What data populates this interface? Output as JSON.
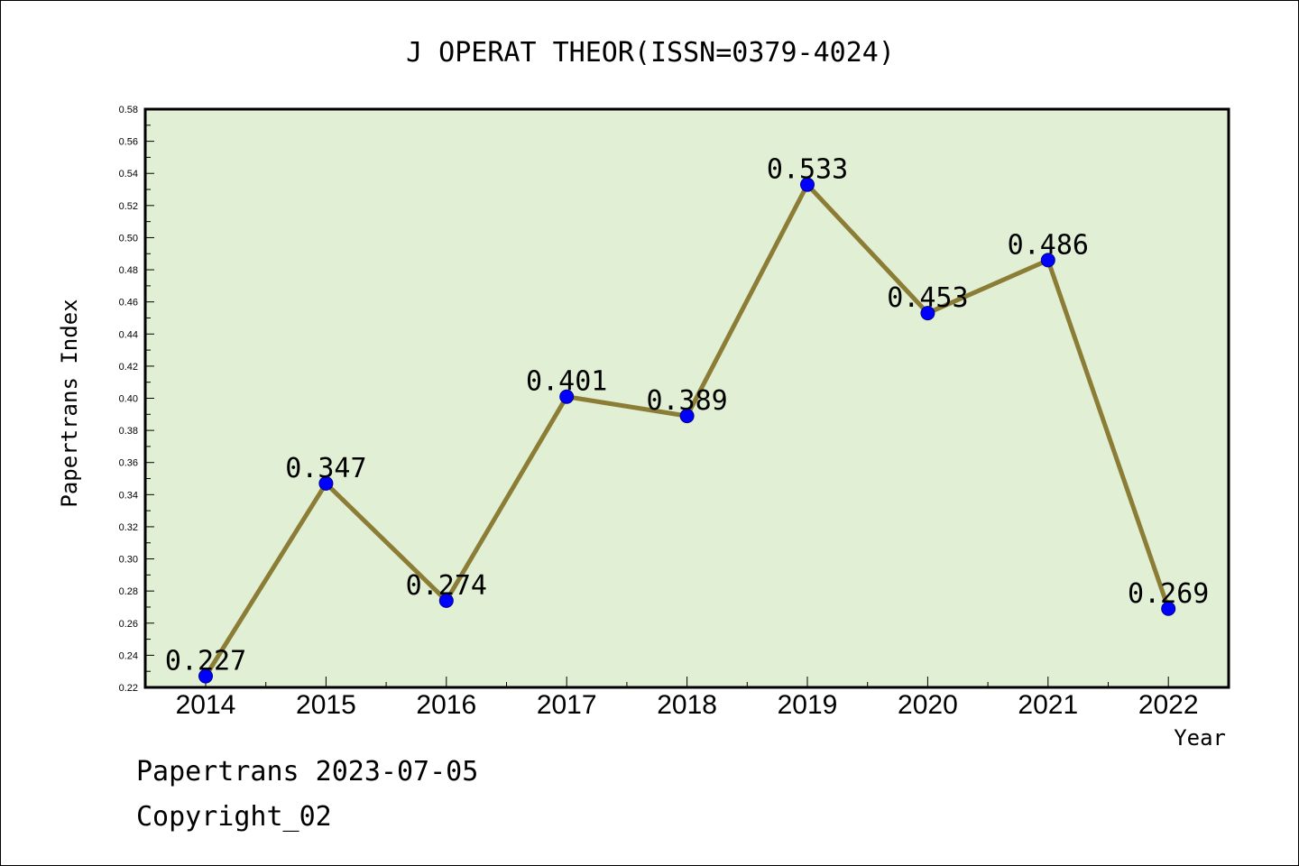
{
  "chart_data": {
    "type": "line",
    "title": "J OPERAT THEOR(ISSN=0379-4024)",
    "xlabel": "Year",
    "ylabel": "Papertrans Index",
    "categories": [
      "2014",
      "2015",
      "2016",
      "2017",
      "2018",
      "2019",
      "2020",
      "2021",
      "2022"
    ],
    "series": [
      {
        "values": [
          0.227,
          0.347,
          0.274,
          0.401,
          0.389,
          0.533,
          0.453,
          0.486,
          0.269
        ],
        "labels": [
          "0.227",
          "0.347",
          "0.274",
          "0.401",
          "0.389",
          "0.533",
          "0.453",
          "0.486",
          "0.269"
        ]
      }
    ],
    "ylim": [
      0.22,
      0.58
    ],
    "yticks": [
      "0.22",
      "0.24",
      "0.26",
      "0.28",
      "0.30",
      "0.32",
      "0.34",
      "0.36",
      "0.38",
      "0.40",
      "0.42",
      "0.44",
      "0.46",
      "0.48",
      "0.50",
      "0.52",
      "0.54",
      "0.56",
      "0.58"
    ],
    "grid": false,
    "legend": "none",
    "colors": {
      "plot_background": "#e1efd5",
      "line": "#8b7d35",
      "marker": "#0000ff",
      "axis": "#000000"
    }
  },
  "footer": {
    "line1": "Papertrans 2023-07-05",
    "line2": "Copyright_02"
  }
}
